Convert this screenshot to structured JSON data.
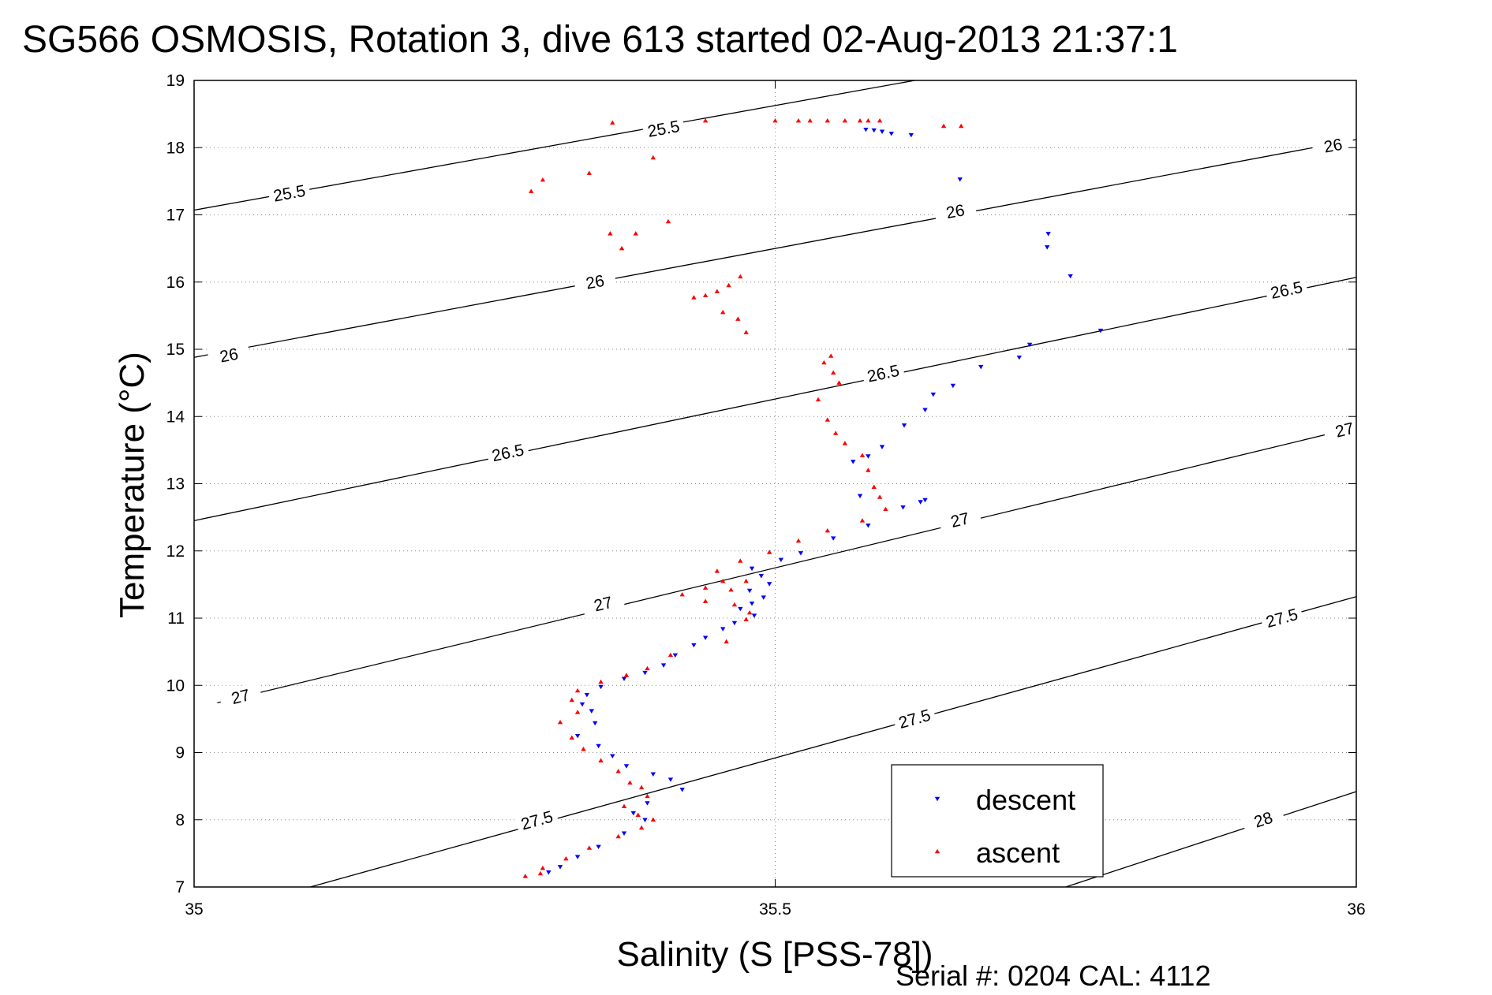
{
  "chart_data": {
    "type": "scatter",
    "title": "SG566 OSMOSIS, Rotation 3, dive 613 started 02-Aug-2013 21:37:1",
    "xlabel": "Salinity (S [PSS-78])",
    "ylabel": "Temperature (°C)",
    "xlim": [
      35,
      36
    ],
    "ylim": [
      7,
      19
    ],
    "xticks": [
      35,
      35.5,
      36
    ],
    "xtick_labels": [
      "35",
      "35.5",
      "36"
    ],
    "yticks": [
      7,
      8,
      9,
      10,
      11,
      12,
      13,
      14,
      15,
      16,
      17,
      18,
      19
    ],
    "ytick_labels": [
      "7",
      "8",
      "9",
      "10",
      "11",
      "12",
      "13",
      "14",
      "15",
      "16",
      "17",
      "18",
      "19"
    ],
    "grid": true,
    "legend_position": "bottom-right",
    "footer": "Serial #: 0204  CAL: 4112",
    "density_contours": [
      {
        "label": "25.5",
        "points": [
          [
            35.0,
            17.07
          ],
          [
            35.62,
            19.0
          ]
        ],
        "label_positions": [
          [
            35.082,
            17.32
          ],
          [
            35.404,
            18.28
          ]
        ]
      },
      {
        "label": "26",
        "points": [
          [
            35.0,
            14.88
          ],
          [
            36.0,
            18.12
          ]
        ],
        "label_positions": [
          [
            35.03,
            14.91
          ],
          [
            35.345,
            16.0
          ],
          [
            35.655,
            17.05
          ],
          [
            35.98,
            18.03
          ]
        ]
      },
      {
        "label": "26.5",
        "points": [
          [
            35.0,
            12.45
          ],
          [
            36.0,
            16.07
          ]
        ],
        "label_positions": [
          [
            35.27,
            13.46
          ],
          [
            35.593,
            14.64
          ],
          [
            35.94,
            15.88
          ]
        ]
      },
      {
        "label": "27",
        "points": [
          [
            35.02,
            9.74
          ],
          [
            36.0,
            13.84
          ]
        ],
        "label_positions": [
          [
            35.04,
            9.83
          ],
          [
            35.352,
            11.21
          ],
          [
            35.659,
            12.46
          ],
          [
            35.99,
            13.8
          ]
        ]
      },
      {
        "label": "27.5",
        "points": [
          [
            35.1,
            7.0
          ],
          [
            36.0,
            11.32
          ]
        ],
        "label_positions": [
          [
            35.295,
            7.99
          ],
          [
            35.62,
            9.5
          ],
          [
            35.936,
            11.0
          ]
        ]
      },
      {
        "label": "28",
        "points": [
          [
            35.75,
            7.0
          ],
          [
            36.0,
            8.42
          ]
        ],
        "label_positions": [
          [
            35.92,
            8.0
          ]
        ]
      }
    ],
    "series": [
      {
        "name": "descent",
        "color": "#0000ff",
        "marker": "triangle-down",
        "points": [
          [
            35.578,
            18.27
          ],
          [
            35.585,
            18.26
          ],
          [
            35.592,
            18.24
          ],
          [
            35.6,
            18.21
          ],
          [
            35.617,
            18.19
          ],
          [
            35.659,
            17.53
          ],
          [
            35.735,
            16.72
          ],
          [
            35.734,
            16.52
          ],
          [
            35.754,
            16.09
          ],
          [
            35.78,
            15.28
          ],
          [
            35.719,
            15.07
          ],
          [
            35.71,
            14.88
          ],
          [
            35.677,
            14.74
          ],
          [
            35.653,
            14.46
          ],
          [
            35.636,
            14.33
          ],
          [
            35.629,
            14.1
          ],
          [
            35.611,
            13.87
          ],
          [
            35.592,
            13.55
          ],
          [
            35.58,
            13.41
          ],
          [
            35.567,
            13.33
          ],
          [
            35.573,
            12.82
          ],
          [
            35.61,
            12.65
          ],
          [
            35.625,
            12.73
          ],
          [
            35.629,
            12.76
          ],
          [
            35.58,
            12.38
          ],
          [
            35.55,
            12.19
          ],
          [
            35.522,
            11.97
          ],
          [
            35.505,
            11.87
          ],
          [
            35.48,
            11.74
          ],
          [
            35.488,
            11.63
          ],
          [
            35.495,
            11.51
          ],
          [
            35.478,
            11.41
          ],
          [
            35.49,
            11.31
          ],
          [
            35.48,
            11.22
          ],
          [
            35.47,
            11.14
          ],
          [
            35.482,
            11.04
          ],
          [
            35.465,
            10.93
          ],
          [
            35.455,
            10.84
          ],
          [
            35.44,
            10.71
          ],
          [
            35.43,
            10.6
          ],
          [
            35.414,
            10.45
          ],
          [
            35.404,
            10.3
          ],
          [
            35.388,
            10.19
          ],
          [
            35.37,
            10.1
          ],
          [
            35.35,
            9.98
          ],
          [
            35.338,
            9.86
          ],
          [
            35.334,
            9.72
          ],
          [
            35.342,
            9.62
          ],
          [
            35.345,
            9.44
          ],
          [
            35.33,
            9.25
          ],
          [
            35.348,
            9.1
          ],
          [
            35.36,
            8.95
          ],
          [
            35.372,
            8.8
          ],
          [
            35.395,
            8.68
          ],
          [
            35.41,
            8.6
          ],
          [
            35.42,
            8.45
          ],
          [
            35.39,
            8.25
          ],
          [
            35.378,
            8.1
          ],
          [
            35.388,
            8.0
          ],
          [
            35.37,
            7.8
          ],
          [
            35.348,
            7.6
          ],
          [
            35.33,
            7.45
          ],
          [
            35.315,
            7.3
          ],
          [
            35.305,
            7.22
          ]
        ]
      },
      {
        "name": "ascent",
        "color": "#ff0000",
        "marker": "triangle-up",
        "points": [
          [
            35.29,
            17.35
          ],
          [
            35.3,
            17.52
          ],
          [
            35.34,
            17.62
          ],
          [
            35.36,
            18.37
          ],
          [
            35.395,
            17.85
          ],
          [
            35.358,
            16.72
          ],
          [
            35.38,
            16.72
          ],
          [
            35.368,
            16.5
          ],
          [
            35.408,
            16.9
          ],
          [
            35.44,
            18.4
          ],
          [
            35.5,
            18.4
          ],
          [
            35.52,
            18.4
          ],
          [
            35.53,
            18.4
          ],
          [
            35.545,
            18.4
          ],
          [
            35.56,
            18.4
          ],
          [
            35.573,
            18.4
          ],
          [
            35.58,
            18.4
          ],
          [
            35.59,
            18.4
          ],
          [
            35.645,
            18.32
          ],
          [
            35.66,
            18.32
          ],
          [
            35.44,
            15.8
          ],
          [
            35.46,
            15.95
          ],
          [
            35.45,
            15.86
          ],
          [
            35.47,
            16.08
          ],
          [
            35.43,
            15.77
          ],
          [
            35.455,
            15.55
          ],
          [
            35.468,
            15.45
          ],
          [
            35.475,
            15.25
          ],
          [
            35.548,
            14.9
          ],
          [
            35.542,
            14.8
          ],
          [
            35.55,
            14.65
          ],
          [
            35.555,
            14.5
          ],
          [
            35.537,
            14.25
          ],
          [
            35.545,
            13.95
          ],
          [
            35.552,
            13.75
          ],
          [
            35.56,
            13.6
          ],
          [
            35.575,
            13.42
          ],
          [
            35.58,
            13.2
          ],
          [
            35.585,
            12.95
          ],
          [
            35.59,
            12.8
          ],
          [
            35.595,
            12.62
          ],
          [
            35.575,
            12.45
          ],
          [
            35.545,
            12.3
          ],
          [
            35.52,
            12.15
          ],
          [
            35.495,
            11.98
          ],
          [
            35.47,
            11.85
          ],
          [
            35.45,
            11.7
          ],
          [
            35.455,
            11.55
          ],
          [
            35.44,
            11.45
          ],
          [
            35.42,
            11.35
          ],
          [
            35.44,
            11.25
          ],
          [
            35.465,
            11.2
          ],
          [
            35.478,
            11.08
          ],
          [
            35.475,
            10.98
          ],
          [
            35.458,
            10.65
          ],
          [
            35.41,
            10.45
          ],
          [
            35.39,
            10.25
          ],
          [
            35.372,
            10.15
          ],
          [
            35.35,
            10.05
          ],
          [
            35.33,
            9.92
          ],
          [
            35.325,
            9.78
          ],
          [
            35.33,
            9.6
          ],
          [
            35.315,
            9.45
          ],
          [
            35.325,
            9.22
          ],
          [
            35.335,
            9.05
          ],
          [
            35.35,
            8.88
          ],
          [
            35.365,
            8.72
          ],
          [
            35.375,
            8.55
          ],
          [
            35.385,
            8.48
          ],
          [
            35.39,
            8.35
          ],
          [
            35.37,
            8.2
          ],
          [
            35.382,
            8.07
          ],
          [
            35.395,
            8.0
          ],
          [
            35.385,
            7.88
          ],
          [
            35.365,
            7.75
          ],
          [
            35.34,
            7.58
          ],
          [
            35.32,
            7.42
          ],
          [
            35.3,
            7.28
          ],
          [
            35.298,
            7.2
          ],
          [
            35.285,
            7.16
          ],
          [
            35.475,
            11.55
          ],
          [
            35.462,
            11.42
          ]
        ]
      }
    ]
  }
}
